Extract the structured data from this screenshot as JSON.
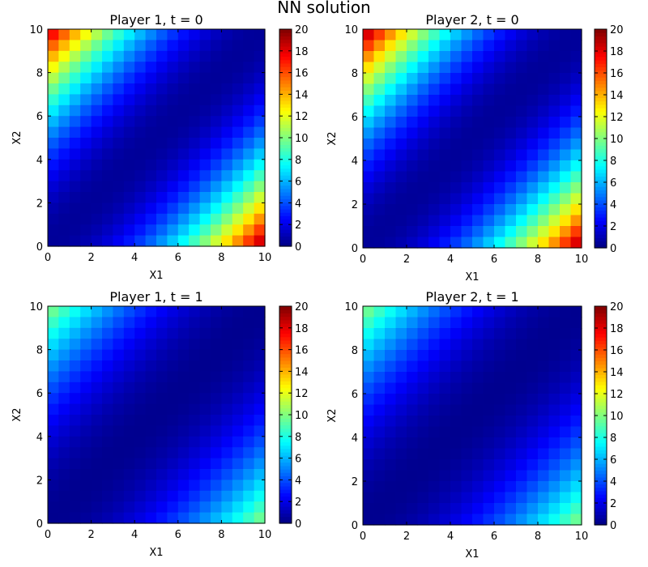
{
  "figure": {
    "suptitle": "NN solution"
  },
  "chart_data": [
    {
      "type": "heatmap",
      "title": "Player 1, t = 0",
      "xlabel": "X1",
      "ylabel": "X2",
      "xlim": [
        0,
        10
      ],
      "ylim": [
        0,
        10
      ],
      "grid_cells": 20,
      "x_ticks": [
        0,
        2,
        4,
        6,
        8,
        10
      ],
      "y_ticks": [
        0,
        2,
        4,
        6,
        8,
        10
      ],
      "value_range": [
        0,
        20
      ],
      "colorbar_ticks": [
        0,
        2,
        4,
        6,
        8,
        10,
        12,
        14,
        16,
        18,
        20
      ],
      "colormap": "jet",
      "max_value_top_left": 19,
      "max_value_bottom_right": 20,
      "diagonal_value": 0.5
    },
    {
      "type": "heatmap",
      "title": "Player 2, t = 0",
      "xlabel": "X1",
      "ylabel": "X2",
      "xlim": [
        0,
        10
      ],
      "ylim": [
        0,
        10
      ],
      "grid_cells": 20,
      "x_ticks": [
        0,
        2,
        4,
        6,
        8,
        10
      ],
      "y_ticks": [
        0,
        2,
        4,
        6,
        8,
        10
      ],
      "value_range": [
        0,
        20
      ],
      "colorbar_ticks": [
        0,
        2,
        4,
        6,
        8,
        10,
        12,
        14,
        16,
        18,
        20
      ],
      "colormap": "jet",
      "max_value_top_left": 20,
      "max_value_bottom_right": 20,
      "diagonal_value": 0.5
    },
    {
      "type": "heatmap",
      "title": "Player 1, t = 1",
      "xlabel": "X1",
      "ylabel": "X2",
      "xlim": [
        0,
        10
      ],
      "ylim": [
        0,
        10
      ],
      "grid_cells": 20,
      "x_ticks": [
        0,
        2,
        4,
        6,
        8,
        10
      ],
      "y_ticks": [
        0,
        2,
        4,
        6,
        8,
        10
      ],
      "value_range": [
        0,
        20
      ],
      "colorbar_ticks": [
        0,
        2,
        4,
        6,
        8,
        10,
        12,
        14,
        16,
        18,
        20
      ],
      "colormap": "jet",
      "max_value_top_left": 10.5,
      "max_value_bottom_right": 10.5,
      "diagonal_value": 0.3
    },
    {
      "type": "heatmap",
      "title": "Player 2, t = 1",
      "xlabel": "X1",
      "ylabel": "X2",
      "xlim": [
        0,
        10
      ],
      "ylim": [
        0,
        10
      ],
      "grid_cells": 20,
      "x_ticks": [
        0,
        2,
        4,
        6,
        8,
        10
      ],
      "y_ticks": [
        0,
        2,
        4,
        6,
        8,
        10
      ],
      "value_range": [
        0,
        20
      ],
      "colorbar_ticks": [
        0,
        2,
        4,
        6,
        8,
        10,
        12,
        14,
        16,
        18,
        20
      ],
      "colormap": "jet",
      "max_value_top_left": 10.5,
      "max_value_bottom_right": 10.5,
      "diagonal_value": 0.3
    }
  ]
}
